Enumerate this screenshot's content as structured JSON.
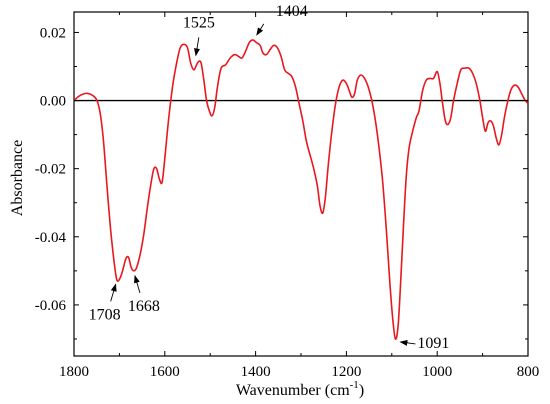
{
  "chart_data": {
    "type": "line",
    "title": "",
    "xlabel": "Wavenumber (cm",
    "xlabel_sup": "-1",
    "xlabel_close": ")",
    "ylabel": "Absorbance",
    "xlim": [
      1800,
      800
    ],
    "ylim": [
      -0.075,
      0.026
    ],
    "x_ticks": [
      1800,
      1600,
      1400,
      1200,
      1000,
      800
    ],
    "x_tick_labels": [
      "1800",
      "1600",
      "1400",
      "1200",
      "1000",
      "800"
    ],
    "y_ticks": [
      0.02,
      0.0,
      -0.02,
      -0.04,
      -0.06
    ],
    "y_tick_labels": [
      "0.02",
      "0.00",
      "-0.02",
      "-0.04",
      "-0.06"
    ],
    "grid": false,
    "zero_line": 0.0,
    "line_color": "#e8181e",
    "series": [
      {
        "points": [
          [
            1800,
            0.0
          ],
          [
            1790,
            0.0012
          ],
          [
            1780,
            0.0019
          ],
          [
            1770,
            0.0021
          ],
          [
            1760,
            0.0016
          ],
          [
            1750,
            0.0002
          ],
          [
            1742,
            -0.004
          ],
          [
            1735,
            -0.012
          ],
          [
            1728,
            -0.024
          ],
          [
            1720,
            -0.037
          ],
          [
            1712,
            -0.047
          ],
          [
            1706,
            -0.0525
          ],
          [
            1700,
            -0.0525
          ],
          [
            1693,
            -0.05
          ],
          [
            1686,
            -0.0465
          ],
          [
            1680,
            -0.046
          ],
          [
            1674,
            -0.049
          ],
          [
            1668,
            -0.05
          ],
          [
            1662,
            -0.049
          ],
          [
            1654,
            -0.045
          ],
          [
            1646,
            -0.039
          ],
          [
            1638,
            -0.031
          ],
          [
            1630,
            -0.024
          ],
          [
            1624,
            -0.02
          ],
          [
            1618,
            -0.02
          ],
          [
            1612,
            -0.023
          ],
          [
            1606,
            -0.024
          ],
          [
            1600,
            -0.017
          ],
          [
            1592,
            -0.006
          ],
          [
            1583,
            0.004
          ],
          [
            1574,
            0.011
          ],
          [
            1566,
            0.0155
          ],
          [
            1558,
            0.0165
          ],
          [
            1550,
            0.0155
          ],
          [
            1543,
            0.011
          ],
          [
            1536,
            0.009
          ],
          [
            1530,
            0.0105
          ],
          [
            1525,
            0.0115
          ],
          [
            1520,
            0.011
          ],
          [
            1514,
            0.006
          ],
          [
            1508,
            0.0
          ],
          [
            1502,
            -0.003
          ],
          [
            1496,
            -0.0045
          ],
          [
            1490,
            -0.002
          ],
          [
            1484,
            0.004
          ],
          [
            1476,
            0.0095
          ],
          [
            1466,
            0.0105
          ],
          [
            1456,
            0.0125
          ],
          [
            1446,
            0.0135
          ],
          [
            1438,
            0.013
          ],
          [
            1430,
            0.0125
          ],
          [
            1422,
            0.0145
          ],
          [
            1414,
            0.017
          ],
          [
            1406,
            0.0178
          ],
          [
            1398,
            0.017
          ],
          [
            1390,
            0.0162
          ],
          [
            1384,
            0.014
          ],
          [
            1376,
            0.0135
          ],
          [
            1368,
            0.015
          ],
          [
            1360,
            0.0162
          ],
          [
            1352,
            0.0155
          ],
          [
            1344,
            0.013
          ],
          [
            1336,
            0.009
          ],
          [
            1328,
            0.008
          ],
          [
            1320,
            0.007
          ],
          [
            1312,
            0.004
          ],
          [
            1304,
            -0.001
          ],
          [
            1296,
            -0.006
          ],
          [
            1288,
            -0.012
          ],
          [
            1280,
            -0.016
          ],
          [
            1272,
            -0.02
          ],
          [
            1264,
            -0.025
          ],
          [
            1258,
            -0.031
          ],
          [
            1252,
            -0.033
          ],
          [
            1246,
            -0.028
          ],
          [
            1240,
            -0.019
          ],
          [
            1232,
            -0.009
          ],
          [
            1224,
            -0.001
          ],
          [
            1216,
            0.004
          ],
          [
            1208,
            0.006
          ],
          [
            1200,
            0.005
          ],
          [
            1194,
            0.003
          ],
          [
            1188,
            0.001
          ],
          [
            1182,
            0.002
          ],
          [
            1176,
            0.006
          ],
          [
            1168,
            0.0075
          ],
          [
            1160,
            0.0065
          ],
          [
            1152,
            0.004
          ],
          [
            1144,
            0.0
          ],
          [
            1136,
            -0.006
          ],
          [
            1128,
            -0.014
          ],
          [
            1120,
            -0.024
          ],
          [
            1112,
            -0.038
          ],
          [
            1104,
            -0.054
          ],
          [
            1098,
            -0.064
          ],
          [
            1092,
            -0.07
          ],
          [
            1086,
            -0.066
          ],
          [
            1080,
            -0.052
          ],
          [
            1074,
            -0.036
          ],
          [
            1068,
            -0.022
          ],
          [
            1062,
            -0.014
          ],
          [
            1054,
            -0.009
          ],
          [
            1046,
            -0.005
          ],
          [
            1040,
            -0.003
          ],
          [
            1032,
            0.003
          ],
          [
            1024,
            0.006
          ],
          [
            1016,
            0.0065
          ],
          [
            1008,
            0.0065
          ],
          [
            1000,
            0.0085
          ],
          [
            994,
            0.005
          ],
          [
            988,
            -0.001
          ],
          [
            982,
            -0.006
          ],
          [
            976,
            -0.007
          ],
          [
            970,
            -0.005
          ],
          [
            964,
            0.0
          ],
          [
            956,
            0.005
          ],
          [
            948,
            0.009
          ],
          [
            940,
            0.0095
          ],
          [
            930,
            0.0095
          ],
          [
            922,
            0.008
          ],
          [
            914,
            0.005
          ],
          [
            906,
            0.0
          ],
          [
            900,
            -0.005
          ],
          [
            894,
            -0.009
          ],
          [
            888,
            -0.0065
          ],
          [
            882,
            -0.006
          ],
          [
            876,
            -0.0075
          ],
          [
            870,
            -0.011
          ],
          [
            864,
            -0.013
          ],
          [
            858,
            -0.01
          ],
          [
            852,
            -0.005
          ],
          [
            846,
            -0.001
          ],
          [
            838,
            0.003
          ],
          [
            830,
            0.0045
          ],
          [
            822,
            0.004
          ],
          [
            814,
            0.002
          ],
          [
            806,
            0.0
          ],
          [
            800,
            -0.0008
          ]
        ]
      }
    ],
    "annotations": [
      {
        "text": "1525",
        "x": 1525,
        "y": 0.0115,
        "label_side": "above"
      },
      {
        "text": "1404",
        "x": 1404,
        "y": 0.0178,
        "label_side": "above-right"
      },
      {
        "text": "1708",
        "x": 1706,
        "y": -0.0525,
        "label_side": "below-left"
      },
      {
        "text": "1668",
        "x": 1668,
        "y": -0.05,
        "label_side": "below-right"
      },
      {
        "text": "1091",
        "x": 1092,
        "y": -0.07,
        "label_side": "right"
      }
    ]
  }
}
